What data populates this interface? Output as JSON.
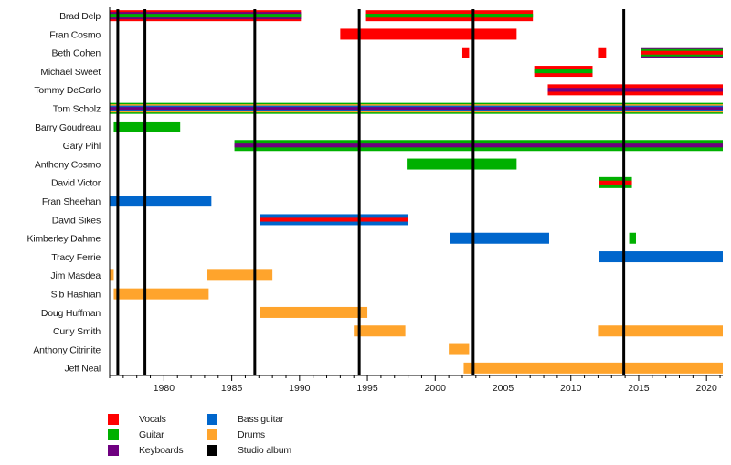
{
  "chart_data": {
    "type": "timeline",
    "title": "",
    "xlabel": "",
    "ylabel": "",
    "xlim": [
      1976.0,
      2021.2
    ],
    "x_ticks": [
      1980,
      1985,
      1990,
      1995,
      2000,
      2005,
      2010,
      2015,
      2020
    ],
    "colors": {
      "Vocals": "#ff0000",
      "Guitar": "#00b000",
      "Keyboards": "#6f0080",
      "Bass guitar": "#0066cc",
      "Drums": "#ffa42c",
      "Studio album": "#000000"
    },
    "legend": [
      {
        "label": "Vocals",
        "role": "Vocals"
      },
      {
        "label": "Guitar",
        "role": "Guitar"
      },
      {
        "label": "Keyboards",
        "role": "Keyboards"
      },
      {
        "label": "Bass guitar",
        "role": "Bass guitar"
      },
      {
        "label": "Drums",
        "role": "Drums"
      },
      {
        "label": "Studio album",
        "role": "Studio album"
      }
    ],
    "legend_position": "bottom-left",
    "studio_albums": [
      1976.6,
      1978.6,
      1986.7,
      1994.4,
      2002.8,
      2013.9
    ],
    "members": [
      {
        "name": "Brad Delp",
        "periods": [
          {
            "start": 1976.0,
            "end": 1990.1,
            "roles": [
              "Vocals",
              "Keyboards",
              "Guitar"
            ]
          },
          {
            "start": 1994.9,
            "end": 2007.2,
            "roles": [
              "Vocals",
              "Guitar"
            ]
          }
        ]
      },
      {
        "name": "Fran Cosmo",
        "periods": [
          {
            "start": 1993.0,
            "end": 2006.0,
            "roles": [
              "Vocals"
            ]
          }
        ]
      },
      {
        "name": "Beth Cohen",
        "periods": [
          {
            "start": 2002.0,
            "end": 2002.5,
            "roles": [
              "Vocals"
            ]
          },
          {
            "start": 2012.0,
            "end": 2012.6,
            "roles": [
              "Vocals"
            ]
          },
          {
            "start": 2015.2,
            "end": 2021.2,
            "roles": [
              "Keyboards",
              "Guitar",
              "Vocals"
            ]
          }
        ]
      },
      {
        "name": "Michael Sweet",
        "periods": [
          {
            "start": 2007.3,
            "end": 2011.6,
            "roles": [
              "Vocals",
              "Guitar"
            ]
          }
        ]
      },
      {
        "name": "Tommy DeCarlo",
        "periods": [
          {
            "start": 2008.3,
            "end": 2021.2,
            "roles": [
              "Vocals",
              "Keyboards"
            ]
          }
        ]
      },
      {
        "name": "Tom Scholz",
        "periods": [
          {
            "start": 1976.0,
            "end": 2021.2,
            "roles": [
              "Guitar",
              "Drums",
              "Bass guitar",
              "Keyboards"
            ]
          }
        ]
      },
      {
        "name": "Barry Goudreau",
        "periods": [
          {
            "start": 1976.3,
            "end": 1981.2,
            "roles": [
              "Guitar"
            ]
          }
        ]
      },
      {
        "name": "Gary Pihl",
        "periods": [
          {
            "start": 1985.2,
            "end": 2021.2,
            "roles": [
              "Guitar",
              "Keyboards"
            ]
          }
        ]
      },
      {
        "name": "Anthony Cosmo",
        "periods": [
          {
            "start": 1997.9,
            "end": 2006.0,
            "roles": [
              "Guitar"
            ]
          }
        ]
      },
      {
        "name": "David Victor",
        "periods": [
          {
            "start": 2012.1,
            "end": 2014.5,
            "roles": [
              "Guitar",
              "Vocals"
            ]
          }
        ]
      },
      {
        "name": "Fran Sheehan",
        "periods": [
          {
            "start": 1976.0,
            "end": 1983.5,
            "roles": [
              "Bass guitar"
            ]
          }
        ]
      },
      {
        "name": "David Sikes",
        "periods": [
          {
            "start": 1987.1,
            "end": 1998.0,
            "roles": [
              "Bass guitar",
              "Vocals"
            ]
          }
        ]
      },
      {
        "name": "Kimberley Dahme",
        "periods": [
          {
            "start": 2001.1,
            "end": 2008.4,
            "roles": [
              "Bass guitar"
            ]
          },
          {
            "start": 2014.3,
            "end": 2014.8,
            "roles": [
              "Guitar"
            ]
          }
        ]
      },
      {
        "name": "Tracy Ferrie",
        "periods": [
          {
            "start": 2012.1,
            "end": 2021.2,
            "roles": [
              "Bass guitar"
            ]
          }
        ]
      },
      {
        "name": "Jim Masdea",
        "periods": [
          {
            "start": 1976.0,
            "end": 1976.3,
            "roles": [
              "Drums"
            ]
          },
          {
            "start": 1983.2,
            "end": 1988.0,
            "roles": [
              "Drums"
            ]
          }
        ]
      },
      {
        "name": "Sib Hashian",
        "periods": [
          {
            "start": 1976.3,
            "end": 1983.3,
            "roles": [
              "Drums"
            ]
          }
        ]
      },
      {
        "name": "Doug Huffman",
        "periods": [
          {
            "start": 1987.1,
            "end": 1995.0,
            "roles": [
              "Drums"
            ]
          }
        ]
      },
      {
        "name": "Curly Smith",
        "periods": [
          {
            "start": 1994.0,
            "end": 1997.8,
            "roles": [
              "Drums"
            ]
          },
          {
            "start": 2012.0,
            "end": 2021.2,
            "roles": [
              "Drums"
            ]
          }
        ]
      },
      {
        "name": "Anthony Citrinite",
        "periods": [
          {
            "start": 2001.0,
            "end": 2002.5,
            "roles": [
              "Drums"
            ]
          }
        ]
      },
      {
        "name": "Jeff Neal",
        "periods": [
          {
            "start": 2002.1,
            "end": 2021.2,
            "roles": [
              "Drums"
            ]
          }
        ]
      }
    ]
  }
}
